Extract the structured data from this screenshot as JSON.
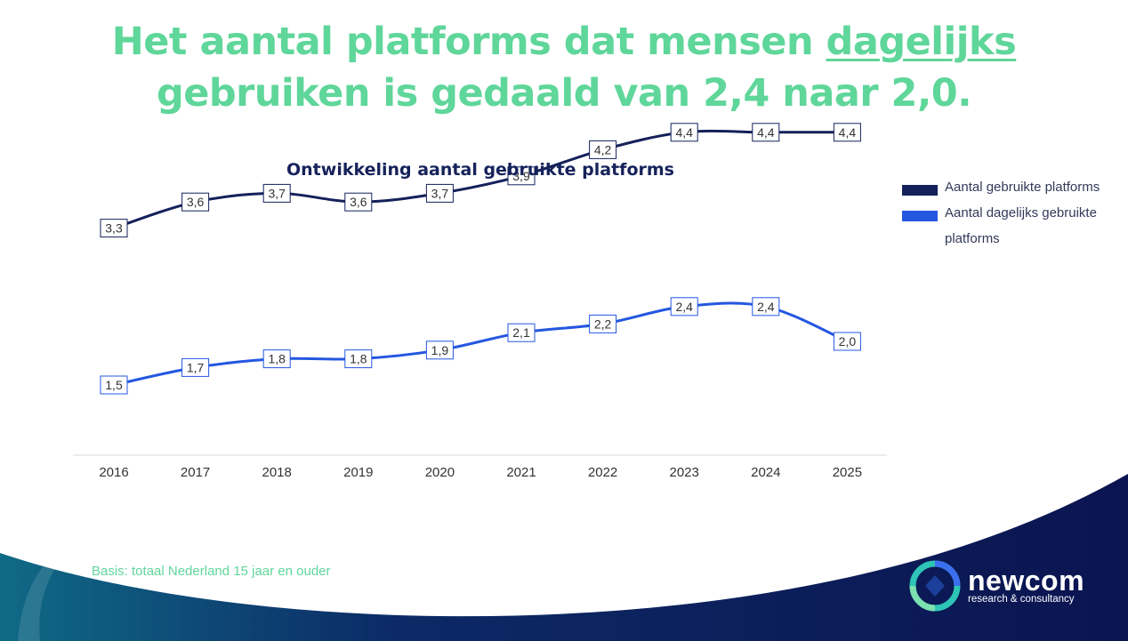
{
  "headline": {
    "part1": "Het aantal platforms dat mensen ",
    "underlined": "dagelijks",
    "line2": "gebruiken is gedaald van 2,4 naar 2,0."
  },
  "chart_data": {
    "type": "line",
    "title": "Ontwikkeling aantal gebruikte platforms",
    "xlabel": "",
    "ylabel": "",
    "x": [
      "2016",
      "2017",
      "2018",
      "2019",
      "2020",
      "2021",
      "2022",
      "2023",
      "2024",
      "2025"
    ],
    "ylim": [
      0,
      5
    ],
    "grid": false,
    "legend_position": "right",
    "series": [
      {
        "name": "Aantal gebruikte platforms",
        "color": "#14215a",
        "values": [
          3.3,
          3.6,
          3.7,
          3.6,
          3.7,
          3.9,
          4.2,
          4.4,
          4.4,
          4.4
        ],
        "labels": [
          "3,3",
          "3,6",
          "3,7",
          "3,6",
          "3,7",
          "3,9",
          "4,2",
          "4,4",
          "4,4",
          "4,4"
        ]
      },
      {
        "name": "Aantal dagelijks gebruikte platforms",
        "color": "#2457e0",
        "values": [
          1.5,
          1.7,
          1.8,
          1.8,
          1.9,
          2.1,
          2.2,
          2.4,
          2.4,
          2.0
        ],
        "labels": [
          "1,5",
          "1,7",
          "1,8",
          "1,8",
          "1,9",
          "2,1",
          "2,2",
          "2,4",
          "2,4",
          "2,0"
        ]
      }
    ]
  },
  "legend": {
    "items": [
      {
        "label": "Aantal gebruikte platforms",
        "color": "#14215a"
      },
      {
        "label": "Aantal dagelijks gebruikte platforms",
        "color": "#2457e0"
      }
    ]
  },
  "footnote": "Basis: totaal Nederland 15 jaar en ouder",
  "logo": {
    "name": "newcom",
    "subtitle": "research & consultancy",
    "icon": "newcom-logo-icon"
  },
  "colors": {
    "accent_green": "#5fd69a",
    "navy": "#14215a",
    "blue": "#2457e0"
  }
}
